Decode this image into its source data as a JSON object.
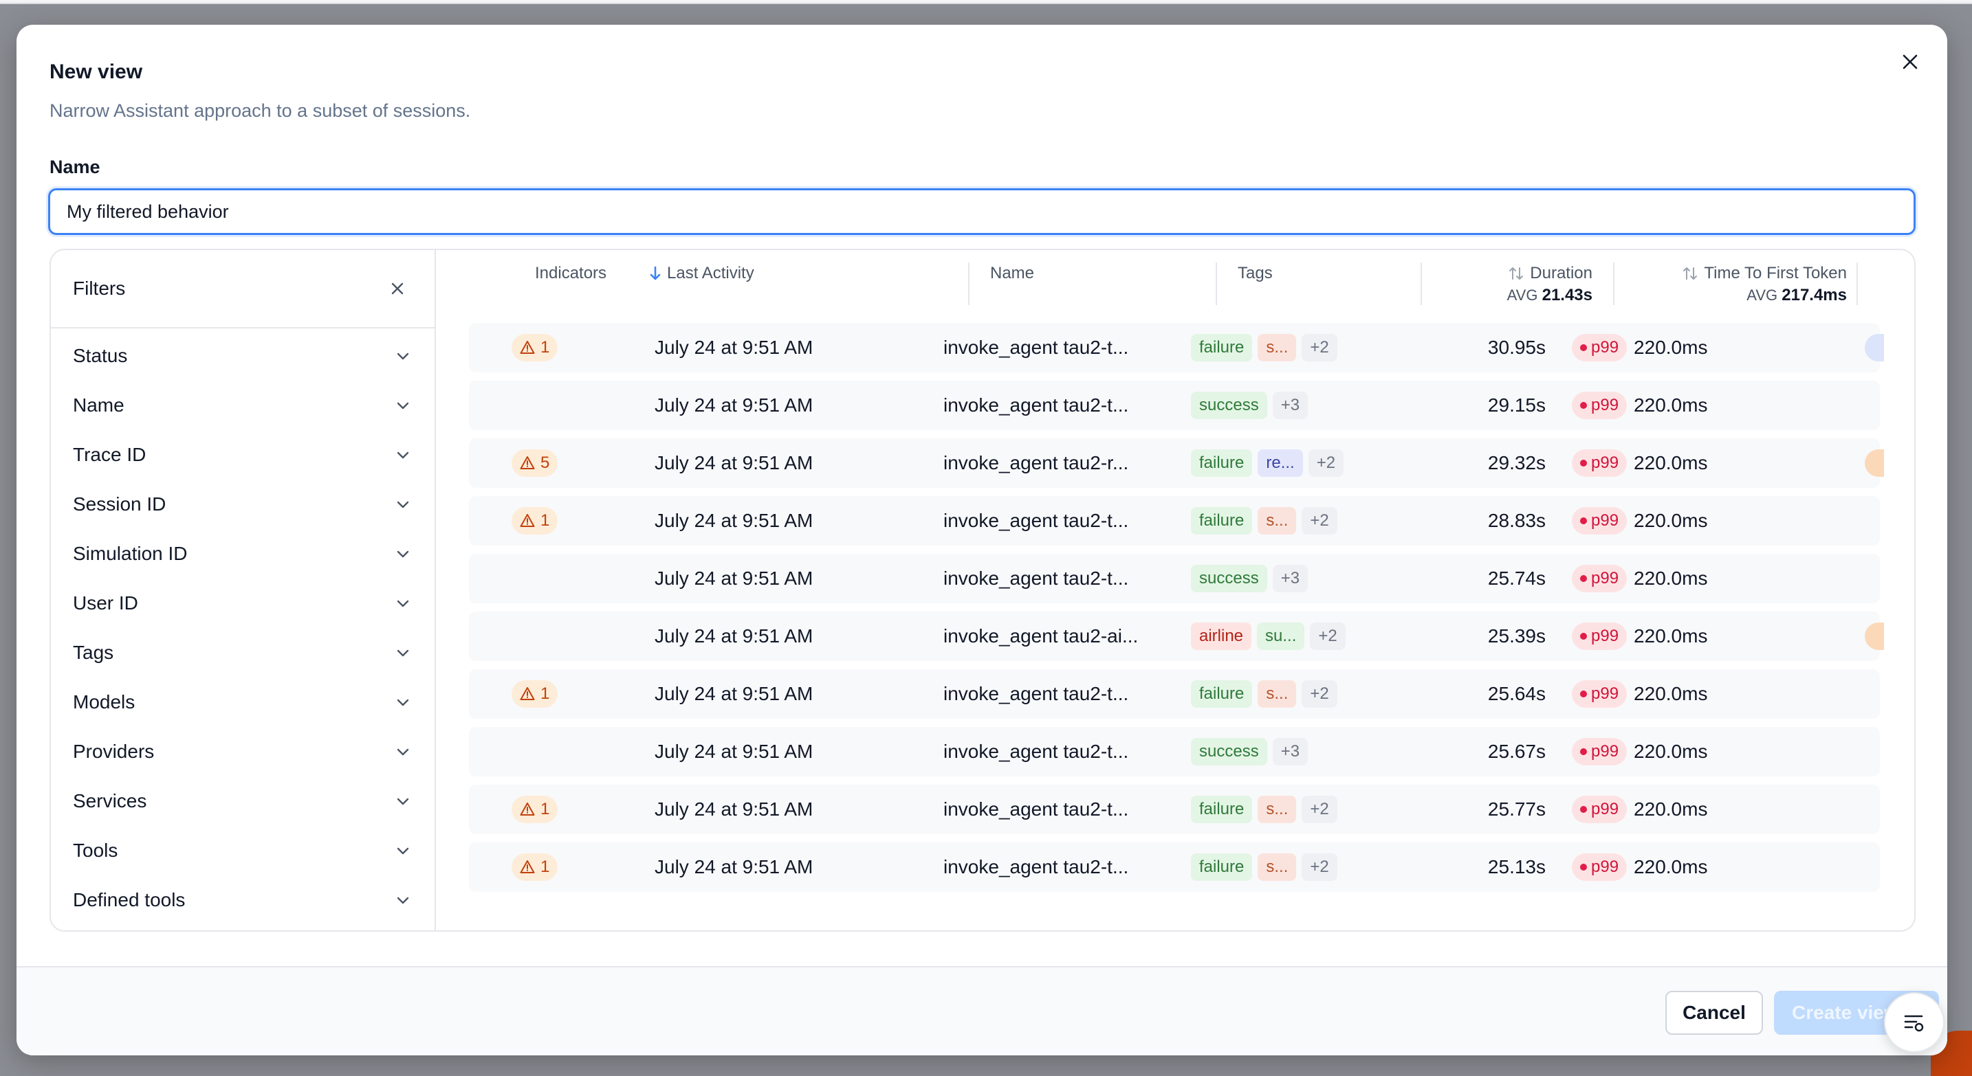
{
  "modal": {
    "title": "New view",
    "subtitle": "Narrow Assistant approach to a subset of sessions.",
    "name_label": "Name",
    "name_value": "My filtered behavior"
  },
  "filters": {
    "title": "Filters",
    "items": [
      "Status",
      "Name",
      "Trace ID",
      "Session ID",
      "Simulation ID",
      "User ID",
      "Tags",
      "Models",
      "Providers",
      "Services",
      "Tools",
      "Defined tools"
    ]
  },
  "table": {
    "columns": {
      "indicators": "Indicators",
      "last_activity": "Last Activity",
      "name": "Name",
      "tags": "Tags",
      "duration": "Duration",
      "duration_avg_label": "AVG",
      "duration_avg": "21.43s",
      "ttft": "Time To First Token",
      "ttft_avg_label": "AVG",
      "ttft_avg": "217.4ms"
    },
    "rows": [
      {
        "indicator": "1",
        "time": "July 24 at 9:51 AM",
        "name": "invoke_agent tau2-t...",
        "tags": [
          {
            "text": "failure",
            "kind": "failure"
          },
          {
            "text": "s...",
            "kind": "short-red"
          },
          {
            "text": "+2",
            "kind": "more"
          }
        ],
        "duration": "30.95s",
        "p99": "p99",
        "ttft": "220.0ms",
        "edge": "blue"
      },
      {
        "indicator": "",
        "time": "July 24 at 9:51 AM",
        "name": "invoke_agent tau2-t...",
        "tags": [
          {
            "text": "success",
            "kind": "success"
          },
          {
            "text": "+3",
            "kind": "more"
          }
        ],
        "duration": "29.15s",
        "p99": "p99",
        "ttft": "220.0ms",
        "edge": ""
      },
      {
        "indicator": "5",
        "time": "July 24 at 9:51 AM",
        "name": "invoke_agent tau2-r...",
        "tags": [
          {
            "text": "failure",
            "kind": "failure"
          },
          {
            "text": "re...",
            "kind": "short-blue"
          },
          {
            "text": "+2",
            "kind": "more"
          }
        ],
        "duration": "29.32s",
        "p99": "p99",
        "ttft": "220.0ms",
        "edge": "orange"
      },
      {
        "indicator": "1",
        "time": "July 24 at 9:51 AM",
        "name": "invoke_agent tau2-t...",
        "tags": [
          {
            "text": "failure",
            "kind": "failure"
          },
          {
            "text": "s...",
            "kind": "short-red"
          },
          {
            "text": "+2",
            "kind": "more"
          }
        ],
        "duration": "28.83s",
        "p99": "p99",
        "ttft": "220.0ms",
        "edge": ""
      },
      {
        "indicator": "",
        "time": "July 24 at 9:51 AM",
        "name": "invoke_agent tau2-t...",
        "tags": [
          {
            "text": "success",
            "kind": "success"
          },
          {
            "text": "+3",
            "kind": "more"
          }
        ],
        "duration": "25.74s",
        "p99": "p99",
        "ttft": "220.0ms",
        "edge": ""
      },
      {
        "indicator": "",
        "time": "July 24 at 9:51 AM",
        "name": "invoke_agent tau2-ai...",
        "tags": [
          {
            "text": "airline",
            "kind": "airline"
          },
          {
            "text": "su...",
            "kind": "short-green"
          },
          {
            "text": "+2",
            "kind": "more"
          }
        ],
        "duration": "25.39s",
        "p99": "p99",
        "ttft": "220.0ms",
        "edge": "orange"
      },
      {
        "indicator": "1",
        "time": "July 24 at 9:51 AM",
        "name": "invoke_agent tau2-t...",
        "tags": [
          {
            "text": "failure",
            "kind": "failure"
          },
          {
            "text": "s...",
            "kind": "short-red"
          },
          {
            "text": "+2",
            "kind": "more"
          }
        ],
        "duration": "25.64s",
        "p99": "p99",
        "ttft": "220.0ms",
        "edge": ""
      },
      {
        "indicator": "",
        "time": "July 24 at 9:51 AM",
        "name": "invoke_agent tau2-t...",
        "tags": [
          {
            "text": "success",
            "kind": "success"
          },
          {
            "text": "+3",
            "kind": "more"
          }
        ],
        "duration": "25.67s",
        "p99": "p99",
        "ttft": "220.0ms",
        "edge": ""
      },
      {
        "indicator": "1",
        "time": "July 24 at 9:51 AM",
        "name": "invoke_agent tau2-t...",
        "tags": [
          {
            "text": "failure",
            "kind": "failure"
          },
          {
            "text": "s...",
            "kind": "short-red"
          },
          {
            "text": "+2",
            "kind": "more"
          }
        ],
        "duration": "25.77s",
        "p99": "p99",
        "ttft": "220.0ms",
        "edge": ""
      },
      {
        "indicator": "1",
        "time": "July 24 at 9:51 AM",
        "name": "invoke_agent tau2-t...",
        "tags": [
          {
            "text": "failure",
            "kind": "failure"
          },
          {
            "text": "s...",
            "kind": "short-red"
          },
          {
            "text": "+2",
            "kind": "more"
          }
        ],
        "duration": "25.13s",
        "p99": "p99",
        "ttft": "220.0ms",
        "edge": ""
      }
    ]
  },
  "footer": {
    "cancel_label": "Cancel",
    "create_label": "Create view"
  },
  "colors": {
    "accent": "#3b82f6",
    "warning": "#c2410c",
    "danger": "#e11d48",
    "edge_blue": "#dbe4fb",
    "edge_orange": "#fbd9b8"
  },
  "icons": {
    "close": "close-icon",
    "chevron": "chevron-down-icon",
    "warning": "warning-icon",
    "sort_down": "arrow-down-icon",
    "sort_both": "sort-icon",
    "fab": "filter-settings-icon"
  }
}
